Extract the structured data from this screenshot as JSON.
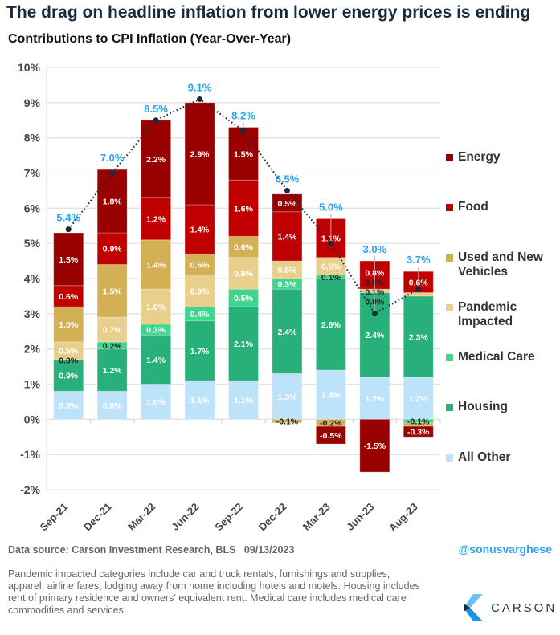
{
  "title": "The drag on headline inflation from lower energy prices is ending",
  "subtitle": "Contributions to CPI Inflation (Year-Over-Year)",
  "source": "Data source: Carson Investment Research, BLS   09/13/2023",
  "handle": "@sonusvarghese",
  "note": "Pandemic impacted categories include car and truck rentals, furnishings and supplies, apparel, airline fares, lodging away from home including hotels and motels. Housing includes rent of primary residence and owners' equivalent rent. Medical care includes medical care commodities and services.",
  "logo": {
    "text": "CARSON",
    "colors": [
      "#1f8fe8",
      "#6cc0f7",
      "#1a2b3c"
    ]
  },
  "chart_data": {
    "type": "bar",
    "stacked": true,
    "title": "Contributions to CPI Inflation (Year-Over-Year)",
    "ylim": [
      -2,
      10
    ],
    "yticks": [
      "-2%",
      "-1%",
      "0%",
      "1%",
      "2%",
      "3%",
      "4%",
      "5%",
      "6%",
      "7%",
      "8%",
      "9%",
      "10%"
    ],
    "grid": true,
    "legend_placement": "right",
    "categories": [
      "Sep-21",
      "Dec-21",
      "Mar-22",
      "Jun-22",
      "Sep-22",
      "Dec-22",
      "Mar-23",
      "Jun-23",
      "Aug-23"
    ],
    "series": [
      {
        "name": "All Other",
        "color": "#bde3fb",
        "values": [
          0.8,
          0.8,
          1.0,
          1.1,
          1.1,
          1.3,
          1.4,
          1.2,
          1.2
        ],
        "labels": [
          "0.8%",
          "0.8%",
          "1.0%",
          "1.1%",
          "1.1%",
          "1.3%",
          "1.4%",
          "1.2%",
          "1.2%"
        ]
      },
      {
        "name": "Housing",
        "color": "#27b07a",
        "values": [
          0.9,
          1.2,
          1.4,
          1.7,
          2.1,
          2.4,
          2.6,
          2.4,
          2.3
        ],
        "labels": [
          "0.9%",
          "1.2%",
          "1.4%",
          "1.7%",
          "2.1%",
          "2.4%",
          "2.6%",
          "2.4%",
          "2.3%"
        ]
      },
      {
        "name": "Medical Care",
        "color": "#3dd68c",
        "values": [
          0.0,
          0.2,
          0.3,
          0.4,
          0.5,
          0.3,
          0.1,
          0.0,
          -0.1
        ],
        "labels": [
          "0.0%",
          "0.2%",
          "0.3%",
          "0.4%",
          "0.5%",
          "0.3%",
          "0.1%",
          "0.0%",
          "-0.1%"
        ]
      },
      {
        "name": "Pandemic Impacted",
        "color": "#e8d08c",
        "values": [
          0.5,
          0.7,
          1.0,
          0.9,
          0.9,
          0.5,
          0.5,
          0.1,
          0.1
        ],
        "labels": [
          "0.5%",
          "0.7%",
          "1.0%",
          "0.9%",
          "0.9%",
          "0.5%",
          "0.5%",
          "0.1%",
          ""
        ]
      },
      {
        "name": "Used and New Vehicles",
        "color": "#d4b054",
        "values": [
          1.0,
          1.5,
          1.4,
          0.6,
          0.6,
          -0.1,
          -0.2,
          0.0,
          -0.1
        ],
        "labels": [
          "1.0%",
          "1.5%",
          "1.4%",
          "0.6%",
          "0.6%",
          "-0.1%",
          "-0.2%",
          "0.0%",
          ""
        ]
      },
      {
        "name": "Food",
        "color": "#c00000",
        "values": [
          0.6,
          0.9,
          1.2,
          1.4,
          1.6,
          1.4,
          1.1,
          0.8,
          0.6
        ],
        "labels": [
          "0.6%",
          "0.9%",
          "1.2%",
          "1.4%",
          "1.6%",
          "1.4%",
          "1.1%",
          "0.8%",
          "0.6%"
        ]
      },
      {
        "name": "Energy",
        "color": "#990000",
        "values": [
          1.5,
          1.8,
          2.2,
          2.9,
          1.5,
          0.5,
          -0.5,
          -1.5,
          -0.3
        ],
        "labels": [
          "1.5%",
          "1.8%",
          "2.2%",
          "2.9%",
          "1.5%",
          "0.5%",
          "-0.5%",
          "-1.5%",
          "-0.3%"
        ]
      }
    ],
    "line": {
      "name": "Headline CPI",
      "color": "#1a2b3c",
      "label_color": "#29a3f5",
      "values": [
        5.4,
        7.0,
        8.5,
        9.1,
        8.2,
        6.5,
        5.0,
        3.0,
        3.7
      ],
      "labels": [
        "5.4%",
        "7.0%",
        "8.5%",
        "9.1%",
        "8.2%",
        "6.5%",
        "5.0%",
        "3.0%",
        "3.7%"
      ]
    },
    "legend_order": [
      "Energy",
      "Food",
      "Used and New Vehicles",
      "Pandemic Impacted",
      "Medical Care",
      "Housing",
      "All Other"
    ]
  }
}
